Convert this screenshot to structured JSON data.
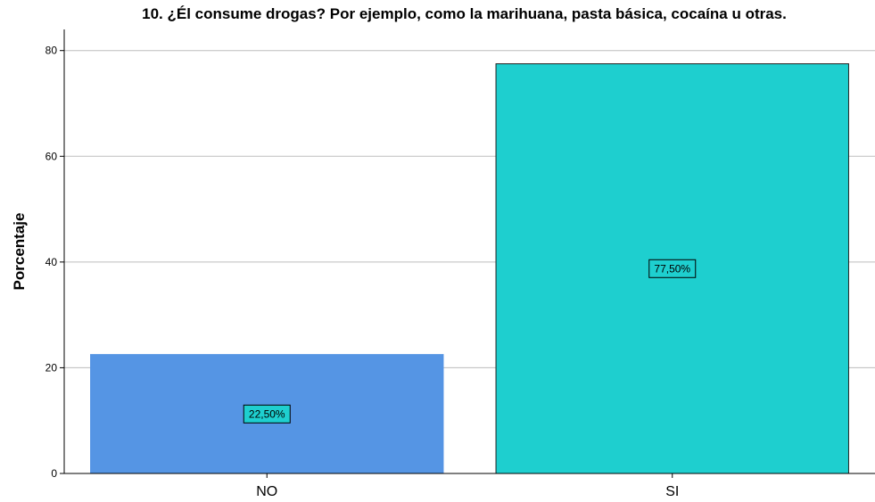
{
  "chart_data": {
    "type": "bar",
    "title": "10. ¿Él consume drogas? Por ejemplo, como la marihuana, pasta básica, cocaína u otras.",
    "xlabel": "",
    "ylabel": "Porcentaje",
    "categories": [
      "NO",
      "SI"
    ],
    "values": [
      22.5,
      77.5
    ],
    "data_labels": [
      "22,50%",
      "77,50%"
    ],
    "bar_colors": [
      "#5595E4",
      "#1ECFCF"
    ],
    "data_label_bg": "#1ECFCF",
    "ylim": [
      0,
      84
    ],
    "yticks": [
      0,
      20,
      40,
      60,
      80
    ],
    "grid": true,
    "grid_color": "#BDBDBD"
  }
}
